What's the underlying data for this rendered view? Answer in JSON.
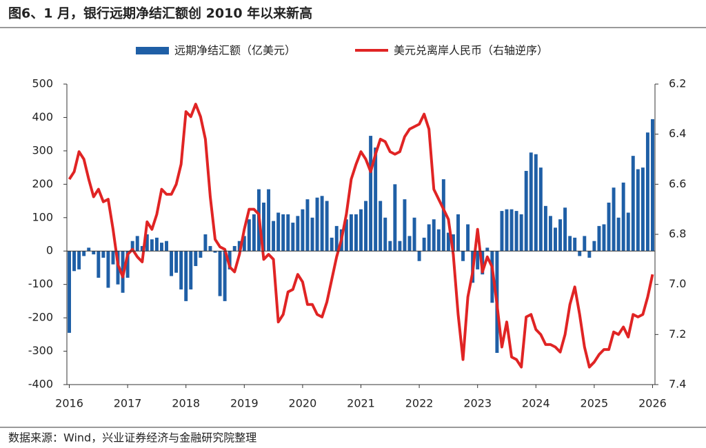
{
  "chart_data": {
    "type": "combo",
    "title": "图6、1 月，银行远期净结汇额创 2010 年以来新高",
    "source": "数据来源：Wind，兴业证券经济与金融研究院整理",
    "categories": [
      "2016",
      null,
      null,
      null,
      null,
      null,
      null,
      null,
      null,
      null,
      null,
      null,
      "2017",
      null,
      null,
      null,
      null,
      null,
      null,
      null,
      null,
      null,
      null,
      null,
      "2018",
      null,
      null,
      null,
      null,
      null,
      null,
      null,
      null,
      null,
      null,
      null,
      "2019",
      null,
      null,
      null,
      null,
      null,
      null,
      null,
      null,
      null,
      null,
      null,
      "2020",
      null,
      null,
      null,
      null,
      null,
      null,
      null,
      null,
      null,
      null,
      null,
      "2021",
      null,
      null,
      null,
      null,
      null,
      null,
      null,
      null,
      null,
      null,
      null,
      "2022",
      null,
      null,
      null,
      null,
      null,
      null,
      null,
      null,
      null,
      null,
      null,
      "2023",
      null,
      null,
      null,
      null,
      null,
      null,
      null,
      null,
      null,
      null,
      null,
      "2024",
      null,
      null,
      null,
      null,
      null,
      null,
      null,
      null,
      null,
      null,
      null,
      "2025",
      null,
      null,
      null,
      null,
      null,
      null,
      null,
      null,
      null,
      null,
      null,
      "2026"
    ],
    "series": [
      {
        "name": "远期净结汇额（亿美元）",
        "type": "bar",
        "color": "#1f5fa6",
        "values": [
          -245,
          -60,
          -55,
          -15,
          10,
          -10,
          -80,
          -20,
          -110,
          -40,
          -100,
          -125,
          -80,
          30,
          45,
          15,
          50,
          35,
          40,
          25,
          30,
          -75,
          -65,
          -115,
          -150,
          -115,
          -45,
          -20,
          50,
          15,
          -5,
          -135,
          -150,
          -55,
          15,
          30,
          45,
          95,
          110,
          185,
          145,
          185,
          90,
          115,
          110,
          110,
          85,
          105,
          125,
          155,
          100,
          160,
          165,
          150,
          40,
          75,
          65,
          95,
          110,
          110,
          125,
          150,
          345,
          310,
          150,
          100,
          30,
          200,
          30,
          155,
          45,
          100,
          -30,
          40,
          80,
          95,
          65,
          215,
          55,
          50,
          110,
          -30,
          80,
          -95,
          -55,
          -70,
          10,
          -155,
          -305,
          120,
          125,
          125,
          120,
          110,
          240,
          295,
          290,
          250,
          135,
          105,
          70,
          95,
          130,
          45,
          40,
          -15,
          45,
          -20,
          30,
          75,
          80,
          145,
          190,
          100,
          205,
          115,
          285,
          245,
          250,
          355,
          395
        ]
      },
      {
        "name": "美元兑离岸人民币（右轴逆序）",
        "type": "line",
        "axis": "y2",
        "color": "#e02424",
        "values": [
          6.58,
          6.55,
          6.47,
          6.5,
          6.58,
          6.65,
          6.62,
          6.67,
          6.66,
          6.78,
          6.92,
          6.97,
          6.88,
          6.86,
          6.89,
          6.91,
          6.75,
          6.78,
          6.72,
          6.62,
          6.64,
          6.64,
          6.6,
          6.52,
          6.31,
          6.33,
          6.28,
          6.33,
          6.42,
          6.65,
          6.82,
          6.85,
          6.86,
          6.93,
          6.95,
          6.88,
          6.78,
          6.7,
          6.7,
          6.72,
          6.9,
          6.88,
          6.9,
          7.15,
          7.12,
          7.03,
          7.02,
          6.96,
          6.99,
          7.08,
          7.08,
          7.12,
          7.13,
          7.07,
          6.98,
          6.89,
          6.82,
          6.72,
          6.58,
          6.52,
          6.47,
          6.5,
          6.55,
          6.48,
          6.42,
          6.43,
          6.47,
          6.48,
          6.47,
          6.41,
          6.38,
          6.37,
          6.36,
          6.32,
          6.38,
          6.62,
          6.66,
          6.7,
          6.74,
          6.88,
          7.12,
          7.3,
          7.05,
          6.95,
          6.78,
          6.95,
          6.89,
          6.93,
          7.08,
          7.25,
          7.15,
          7.29,
          7.3,
          7.33,
          7.13,
          7.12,
          7.18,
          7.2,
          7.24,
          7.24,
          7.25,
          7.27,
          7.2,
          7.08,
          7.01,
          7.12,
          7.25,
          7.33,
          7.31,
          7.28,
          7.26,
          7.26,
          7.19,
          7.2,
          7.17,
          7.21,
          7.12,
          7.13,
          7.12,
          7.05,
          6.96
        ]
      }
    ],
    "ylim": [
      -400,
      500
    ],
    "yticks": [
      -400,
      -300,
      -200,
      -100,
      0,
      100,
      200,
      300,
      400,
      500
    ],
    "y2lim": [
      7.4,
      6.2
    ],
    "y2ticks": [
      6.2,
      6.4,
      6.6,
      6.8,
      {
        "value": 7,
        "label": "7.0"
      },
      7.2,
      7.4
    ]
  }
}
